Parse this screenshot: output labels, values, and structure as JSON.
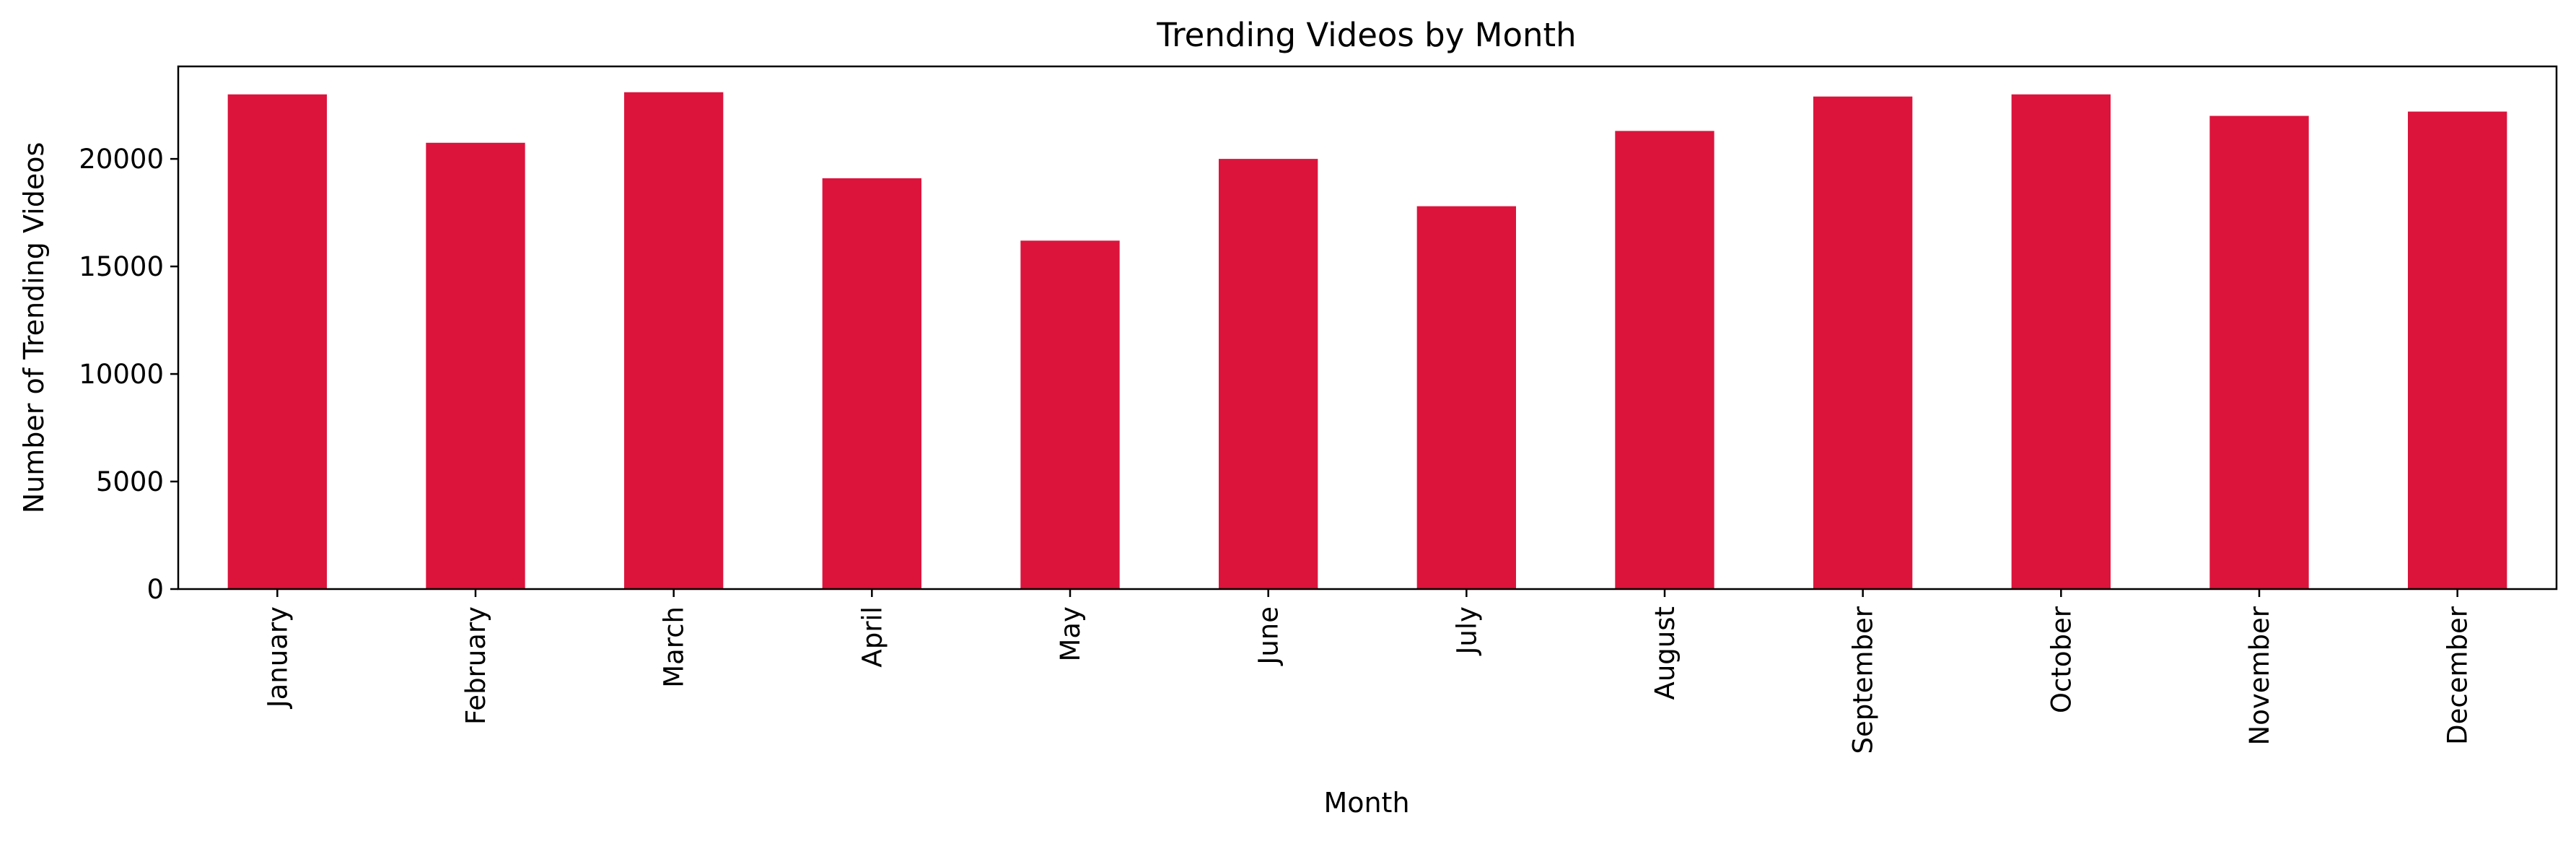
{
  "chart_data": {
    "type": "bar",
    "title": "Trending Videos by Month",
    "xlabel": "Month",
    "ylabel": "Number of Trending Videos",
    "categories": [
      "January",
      "February",
      "March",
      "April",
      "May",
      "June",
      "July",
      "August",
      "September",
      "October",
      "November",
      "December"
    ],
    "values": [
      23000,
      20750,
      23100,
      19100,
      16200,
      20000,
      17800,
      21300,
      22900,
      23000,
      22000,
      22200
    ],
    "ylim": [
      0,
      24300
    ],
    "yticks": [
      0,
      5000,
      10000,
      15000,
      20000
    ],
    "grid": false,
    "legend": null,
    "bar_color": "#dc143c"
  }
}
